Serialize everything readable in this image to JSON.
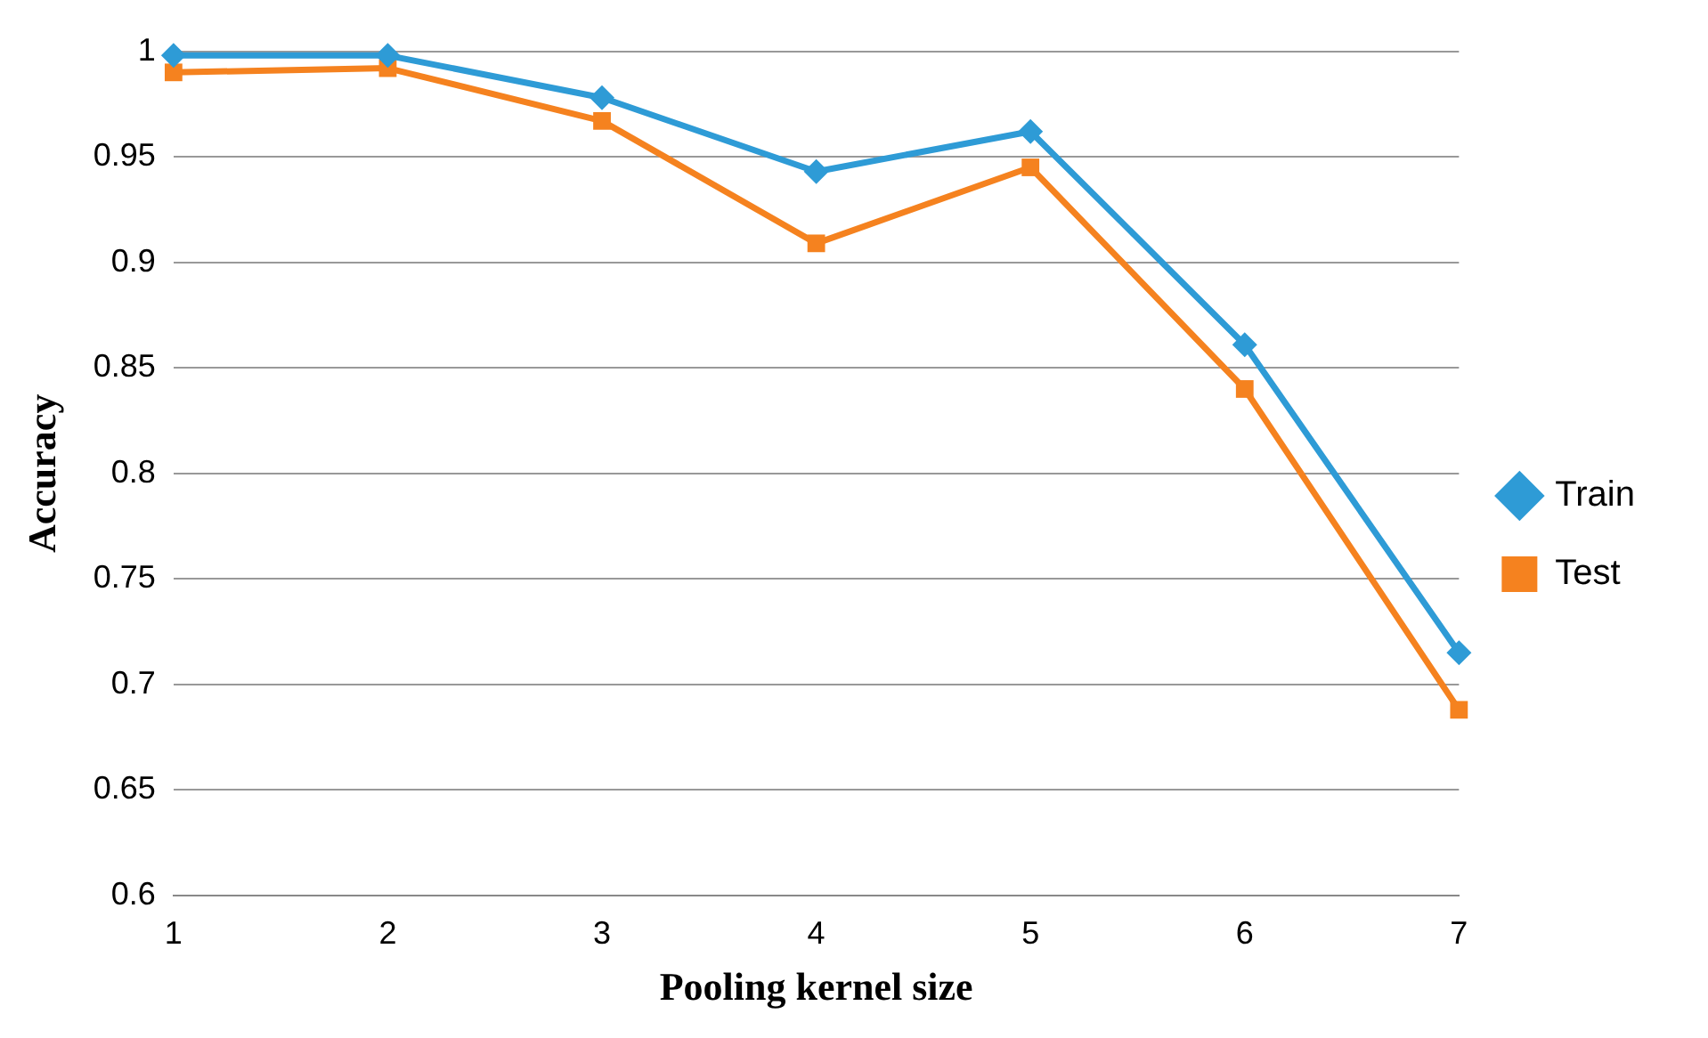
{
  "chart_data": {
    "type": "line",
    "xlabel": "Pooling kernel size",
    "ylabel": "Accuracy",
    "categories": [
      "1",
      "2",
      "3",
      "4",
      "5",
      "6",
      "7"
    ],
    "series": [
      {
        "name": "Train",
        "color": "#2e9bd6",
        "marker": "diamond",
        "values": [
          0.998,
          0.998,
          0.978,
          0.943,
          0.962,
          0.861,
          0.715
        ]
      },
      {
        "name": "Test",
        "color": "#f5821f",
        "marker": "square",
        "values": [
          0.99,
          0.992,
          0.967,
          0.909,
          0.945,
          0.84,
          0.688
        ]
      }
    ],
    "ylim": [
      0.6,
      1
    ],
    "yticks": [
      0.6,
      0.65,
      0.7,
      0.75,
      0.8,
      0.85,
      0.9,
      0.95,
      1
    ],
    "grid": "y",
    "legend": "right",
    "line_style": "solid"
  }
}
